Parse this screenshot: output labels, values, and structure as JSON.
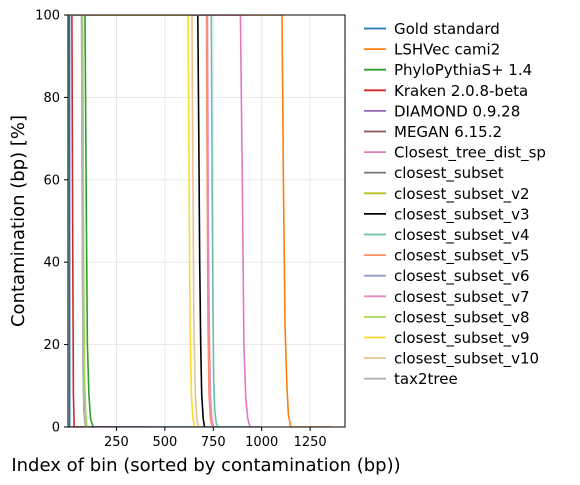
{
  "chart_data": {
    "type": "line",
    "xlabel": "Index of bin (sorted by contamination (bp))",
    "ylabel": "Contamination (bp) [%]",
    "xlim": [
      0,
      1430
    ],
    "ylim": [
      0,
      100
    ],
    "xticks": [
      250,
      500,
      750,
      1000,
      1250
    ],
    "yticks": [
      0,
      20,
      40,
      60,
      80,
      100
    ],
    "grid": true,
    "legend_position": "outside-right",
    "series": [
      {
        "name": "Gold standard",
        "color": "#1f77b4",
        "x": [
          0,
          8,
          9,
          1000
        ],
        "y": [
          100,
          100,
          0,
          0
        ]
      },
      {
        "name": "LSHVec cami2",
        "color": "#ff7f0e",
        "x": [
          0,
          1105,
          1112,
          1120,
          1130,
          1138,
          1150,
          1365
        ],
        "y": [
          100,
          100,
          60,
          25,
          10,
          3,
          0,
          0
        ]
      },
      {
        "name": "PhyloPythiaS+ 1.4",
        "color": "#2ca02c",
        "x": [
          0,
          88,
          95,
          100,
          108,
          116,
          130
        ],
        "y": [
          100,
          100,
          50,
          20,
          8,
          2,
          0
        ]
      },
      {
        "name": "Kraken 2.0.8-beta",
        "color": "#d62728",
        "x": [
          0,
          20,
          25,
          28,
          32,
          210
        ],
        "y": [
          100,
          100,
          40,
          8,
          0,
          0
        ]
      },
      {
        "name": "DIAMOND 0.9.28",
        "color": "#9467bd",
        "x": [
          0,
          70,
          74,
          78,
          82,
          90,
          420
        ],
        "y": [
          100,
          100,
          50,
          15,
          4,
          0,
          0
        ]
      },
      {
        "name": "MEGAN 6.15.2",
        "color": "#8c564b",
        "x": [
          0,
          72,
          76,
          80,
          86,
          94
        ],
        "y": [
          100,
          100,
          40,
          10,
          2,
          0
        ]
      },
      {
        "name": "Closest_tree_dist_sp",
        "color": "#e377c2",
        "x": [
          0,
          890,
          900,
          908,
          918,
          928,
          940,
          1000
        ],
        "y": [
          100,
          100,
          60,
          20,
          7,
          2,
          0,
          0
        ]
      },
      {
        "name": "closest_subset",
        "color": "#7f7f7f",
        "x": [
          0,
          75,
          79,
          83,
          90,
          96
        ],
        "y": [
          100,
          100,
          50,
          15,
          3,
          0
        ]
      },
      {
        "name": "closest_subset_v2",
        "color": "#bcbd22",
        "x": [
          0,
          73,
          77,
          82,
          88,
          94
        ],
        "y": [
          100,
          100,
          45,
          12,
          3,
          0
        ]
      },
      {
        "name": "closest_subset_v3",
        "color": "#000000",
        "x": [
          0,
          670,
          675,
          680,
          685,
          690,
          698,
          705
        ],
        "y": [
          100,
          100,
          70,
          40,
          20,
          8,
          2,
          0
        ]
      },
      {
        "name": "closest_subset_v4",
        "color": "#66c2a5",
        "x": [
          0,
          740,
          744,
          748,
          752,
          758,
          765,
          775
        ],
        "y": [
          100,
          100,
          60,
          30,
          12,
          4,
          1,
          0
        ]
      },
      {
        "name": "closest_subset_v5",
        "color": "#fc8d62",
        "x": [
          0,
          715,
          719,
          723,
          728,
          735,
          745
        ],
        "y": [
          100,
          100,
          55,
          25,
          8,
          2,
          0
        ]
      },
      {
        "name": "closest_subset_v6",
        "color": "#8da0cb",
        "x": [
          0,
          74,
          78,
          83,
          90,
          95
        ],
        "y": [
          100,
          100,
          40,
          10,
          2,
          0
        ]
      },
      {
        "name": "closest_subset_v7",
        "color": "#e78ac3",
        "x": [
          0,
          720,
          724,
          729,
          735,
          742,
          752
        ],
        "y": [
          100,
          100,
          55,
          25,
          8,
          2,
          0
        ]
      },
      {
        "name": "closest_subset_v8",
        "color": "#a6d854",
        "x": [
          0,
          76,
          80,
          85,
          92,
          98
        ],
        "y": [
          100,
          100,
          45,
          12,
          3,
          0
        ]
      },
      {
        "name": "closest_subset_v9",
        "color": "#ffd92f",
        "x": [
          0,
          620,
          625,
          630,
          637,
          645,
          655
        ],
        "y": [
          100,
          100,
          60,
          25,
          8,
          2,
          0
        ]
      },
      {
        "name": "closest_subset_v10",
        "color": "#e5c494",
        "x": [
          0,
          640,
          645,
          650,
          657,
          665,
          675
        ],
        "y": [
          100,
          100,
          60,
          25,
          8,
          2,
          0
        ]
      },
      {
        "name": "tax2tree",
        "color": "#b3b3b3",
        "x": [
          0,
          70,
          74,
          78,
          84,
          90
        ],
        "y": [
          100,
          100,
          45,
          12,
          3,
          0
        ]
      }
    ]
  }
}
